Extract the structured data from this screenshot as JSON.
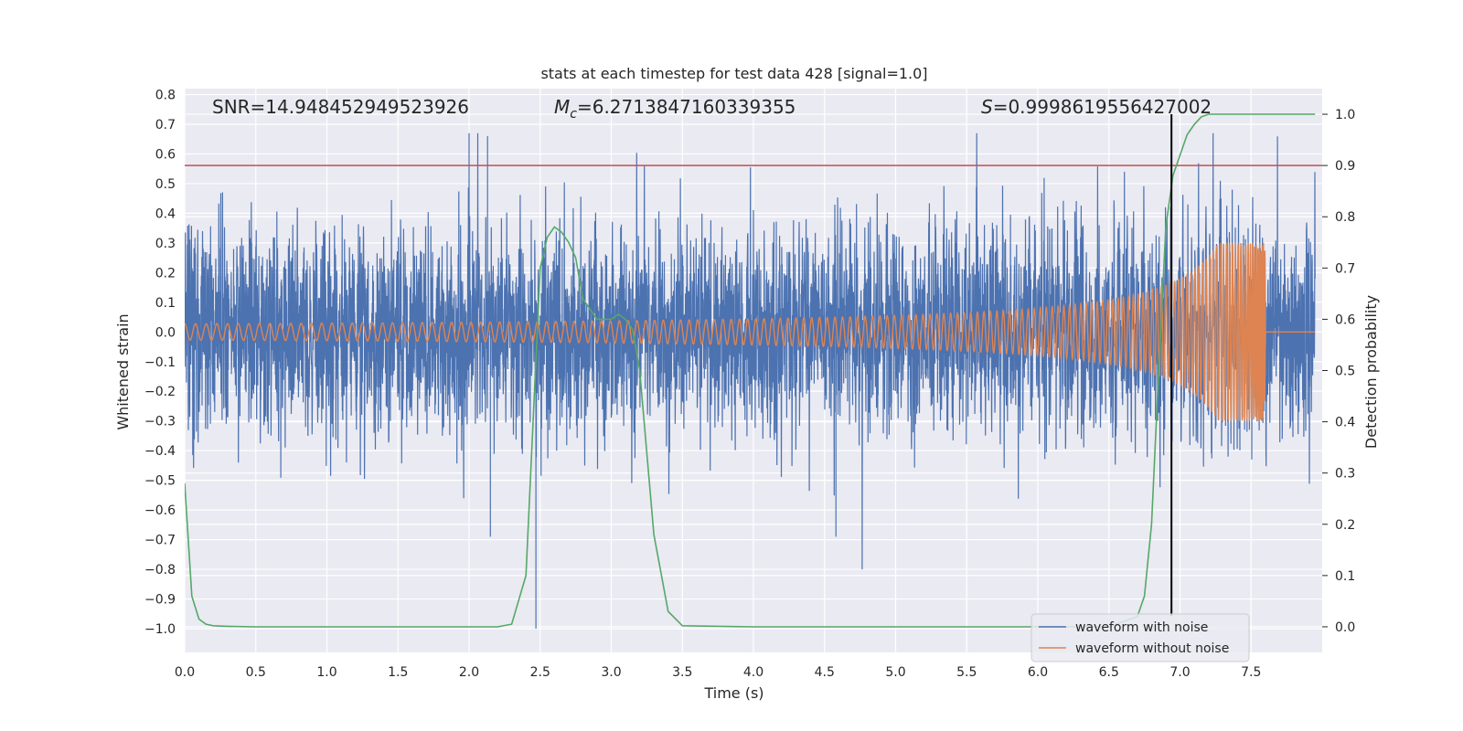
{
  "chart_data": {
    "type": "line",
    "title": "stats at each timestep for test data 428 [signal=1.0]",
    "xlabel": "Time (s)",
    "ylabel": "Whitened strain",
    "y2label": "Detection probability",
    "xlim": [
      0.0,
      8.0
    ],
    "ylim": [
      -1.08,
      0.82
    ],
    "y2lim": [
      -0.05,
      1.05
    ],
    "xticks": [
      "0.0",
      "0.5",
      "1.0",
      "1.5",
      "2.0",
      "2.5",
      "3.0",
      "3.5",
      "4.0",
      "4.5",
      "5.0",
      "5.5",
      "6.0",
      "6.5",
      "7.0",
      "7.5"
    ],
    "yticks": [
      "0.8",
      "0.7",
      "0.6",
      "0.5",
      "0.4",
      "0.3",
      "0.2",
      "0.1",
      "0.0",
      "−0.1",
      "−0.2",
      "−0.3",
      "−0.4",
      "−0.5",
      "−0.6",
      "−0.7",
      "−0.8",
      "−0.9",
      "−1.0"
    ],
    "y2ticks": [
      "1.0",
      "0.9",
      "0.8",
      "0.7",
      "0.6",
      "0.5",
      "0.4",
      "0.3",
      "0.2",
      "0.1",
      "0.0"
    ],
    "grid": true,
    "annotations": {
      "snr": "SNR=14.948452949523926",
      "mc_symbol": "M",
      "mc_sub": "c",
      "mc_value": "=6.2713847160339355",
      "s_symbol": "S",
      "s_value": "=0.9998619556427002"
    },
    "legend": {
      "placement": "lower-right",
      "entries": [
        {
          "label": "waveform with noise",
          "color": "#4c72b0"
        },
        {
          "label": "waveform without noise",
          "color": "#dd8452"
        }
      ]
    },
    "colors": {
      "noisy": "#4c72b0",
      "clean": "#dd8452",
      "probability": "#55a868",
      "threshold": "#c44e52",
      "detection_marker": "#000000",
      "plot_bg": "#eaeaf2"
    },
    "threshold_probability": 0.9,
    "detection_time": 6.94,
    "chirp": {
      "merger_time": 7.6,
      "amplitude_start": 0.01,
      "amplitude_peak": 0.3,
      "cycles": 160
    },
    "noise_band": {
      "typical_upper": 0.3,
      "typical_lower": -0.3,
      "max_peak": 0.67,
      "min_trough": -1.0
    },
    "probability_series": {
      "x": [
        0.0,
        0.05,
        0.1,
        0.15,
        0.2,
        0.3,
        0.5,
        1.0,
        2.0,
        2.2,
        2.3,
        2.4,
        2.45,
        2.5,
        2.55,
        2.6,
        2.65,
        2.7,
        2.75,
        2.8,
        2.9,
        3.0,
        3.05,
        3.1,
        3.15,
        3.2,
        3.3,
        3.4,
        3.5,
        4.0,
        5.0,
        6.0,
        6.5,
        6.7,
        6.75,
        6.8,
        6.85,
        6.9,
        6.95,
        7.0,
        7.05,
        7.1,
        7.15,
        7.2,
        7.3,
        7.5,
        7.95
      ],
      "y": [
        0.28,
        0.06,
        0.015,
        0.005,
        0.002,
        0.001,
        0.0,
        0.0,
        0.0,
        0.0,
        0.005,
        0.1,
        0.4,
        0.7,
        0.76,
        0.78,
        0.77,
        0.75,
        0.72,
        0.64,
        0.6,
        0.6,
        0.61,
        0.6,
        0.58,
        0.5,
        0.18,
        0.03,
        0.002,
        0.0,
        0.0,
        0.0,
        0.0,
        0.02,
        0.06,
        0.2,
        0.5,
        0.78,
        0.88,
        0.92,
        0.96,
        0.98,
        0.995,
        1.0,
        1.0,
        1.0,
        1.0
      ]
    }
  }
}
